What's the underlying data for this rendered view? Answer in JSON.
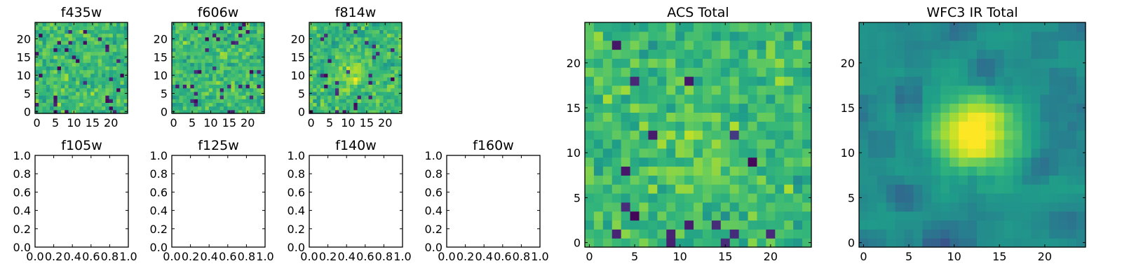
{
  "chart_data": [
    {
      "type": "heatmap",
      "title": "f435w",
      "xlim": [
        -0.5,
        24.5
      ],
      "ylim": [
        -0.5,
        24.5
      ],
      "xticks": [
        0,
        5,
        10,
        15,
        20
      ],
      "yticks": [
        0,
        5,
        10,
        15,
        20
      ],
      "grid": false,
      "colormap": "viridis",
      "size": 25,
      "value_range": [
        0,
        1
      ],
      "seed": 11,
      "blob": {
        "x": 12,
        "y": 11,
        "sigma": 3,
        "amplitude": 0.0
      }
    },
    {
      "type": "heatmap",
      "title": "f606w",
      "xlim": [
        -0.5,
        24.5
      ],
      "ylim": [
        -0.5,
        24.5
      ],
      "xticks": [
        0,
        5,
        10,
        15,
        20
      ],
      "yticks": [
        0,
        5,
        10,
        15,
        20
      ],
      "grid": false,
      "colormap": "viridis",
      "size": 25,
      "value_range": [
        0,
        1
      ],
      "seed": 23,
      "blob": {
        "x": 12,
        "y": 11,
        "sigma": 3,
        "amplitude": 0.05
      }
    },
    {
      "type": "heatmap",
      "title": "f814w",
      "xlim": [
        -0.5,
        24.5
      ],
      "ylim": [
        -0.5,
        24.5
      ],
      "xticks": [
        0,
        5,
        10,
        15,
        20
      ],
      "yticks": [
        0,
        5,
        10,
        15,
        20
      ],
      "grid": false,
      "colormap": "viridis",
      "size": 25,
      "value_range": [
        0,
        1
      ],
      "seed": 37,
      "blob": {
        "x": 12,
        "y": 11,
        "sigma": 3,
        "amplitude": 0.18
      }
    },
    {
      "type": "heatmap",
      "title": "f105w",
      "xlim": [
        0.0,
        1.0
      ],
      "ylim": [
        0.0,
        1.0
      ],
      "xticks": [
        "0.0",
        "0.2",
        "0.4",
        "0.6",
        "0.8",
        "1.0"
      ],
      "yticks": [
        "0.0",
        "0.2",
        "0.4",
        "0.6",
        "0.8",
        "1.0"
      ],
      "grid": false,
      "empty": true
    },
    {
      "type": "heatmap",
      "title": "f125w",
      "xlim": [
        0.0,
        1.0
      ],
      "ylim": [
        0.0,
        1.0
      ],
      "xticks": [
        "0.0",
        "0.2",
        "0.4",
        "0.6",
        "0.8",
        "1.0"
      ],
      "yticks": [
        "0.0",
        "0.2",
        "0.4",
        "0.6",
        "0.8",
        "1.0"
      ],
      "grid": false,
      "empty": true
    },
    {
      "type": "heatmap",
      "title": "f140w",
      "xlim": [
        0.0,
        1.0
      ],
      "ylim": [
        0.0,
        1.0
      ],
      "xticks": [
        "0.0",
        "0.2",
        "0.4",
        "0.6",
        "0.8",
        "1.0"
      ],
      "yticks": [
        "0.0",
        "0.2",
        "0.4",
        "0.6",
        "0.8",
        "1.0"
      ],
      "grid": false,
      "empty": true
    },
    {
      "type": "heatmap",
      "title": "f160w",
      "xlim": [
        0.0,
        1.0
      ],
      "ylim": [
        0.0,
        1.0
      ],
      "xticks": [
        "0.0",
        "0.2",
        "0.4",
        "0.6",
        "0.8",
        "1.0"
      ],
      "yticks": [
        "0.0",
        "0.2",
        "0.4",
        "0.6",
        "0.8",
        "1.0"
      ],
      "grid": false,
      "empty": true
    },
    {
      "type": "heatmap",
      "title": "ACS Total",
      "xlim": [
        -0.5,
        24.5
      ],
      "ylim": [
        -0.5,
        24.5
      ],
      "xticks": [
        0,
        5,
        10,
        15,
        20
      ],
      "yticks": [
        0,
        5,
        10,
        15,
        20
      ],
      "grid": false,
      "colormap": "viridis",
      "size": 25,
      "value_range": [
        0,
        1
      ],
      "seed": 51,
      "blob": {
        "x": 12,
        "y": 11,
        "sigma": 3,
        "amplitude": 0.08
      }
    },
    {
      "type": "heatmap",
      "title": "WFC3 IR Total",
      "xlim": [
        -0.5,
        24.5
      ],
      "ylim": [
        -0.5,
        24.5
      ],
      "xticks": [
        0,
        5,
        10,
        15,
        20
      ],
      "yticks": [
        0,
        5,
        10,
        15,
        20
      ],
      "grid": false,
      "colormap": "viridis",
      "size": 25,
      "value_range": [
        0,
        1
      ],
      "seed": 67,
      "blob": {
        "x": 12.5,
        "y": 12,
        "sigma": 3,
        "amplitude": 0.6
      },
      "smooth": true
    }
  ]
}
